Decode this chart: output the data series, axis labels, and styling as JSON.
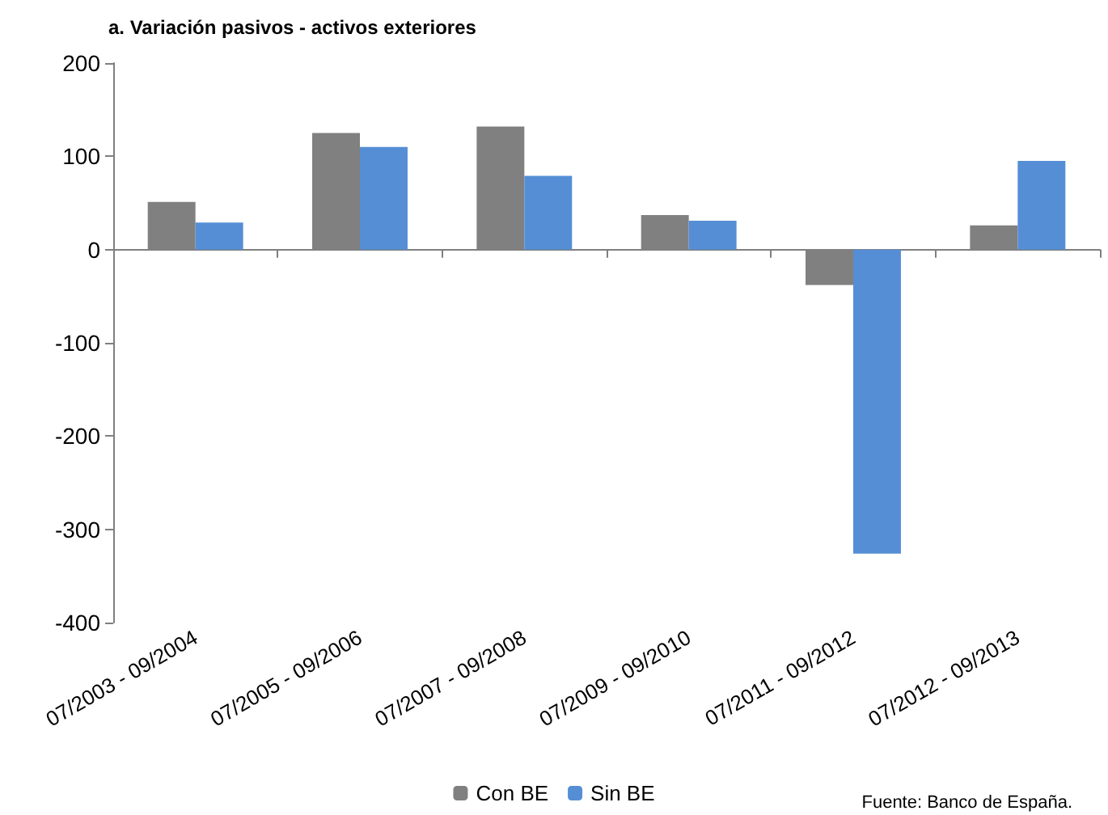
{
  "chart_data": {
    "type": "bar",
    "title": "a. Variación pasivos - activos exteriores",
    "categories": [
      "07/2003 - 09/2004",
      "07/2005 - 09/2006",
      "07/2007 - 09/2008",
      "07/2009 - 09/2010",
      "07/2011 - 09/2012",
      "07/2012 - 09/2013"
    ],
    "series": [
      {
        "name": "Con BE",
        "color": "#808080",
        "values": [
          51,
          125,
          132,
          37,
          -38,
          26
        ]
      },
      {
        "name": "Sin BE",
        "color": "#558ed5",
        "values": [
          29,
          110,
          79,
          31,
          -326,
          95
        ]
      }
    ],
    "ylim": [
      -400,
      200
    ],
    "yticks": [
      -400,
      -300,
      -200,
      -100,
      0,
      100,
      200
    ],
    "legend": "bottom",
    "annotations": [
      "Fuente: Banco de España."
    ]
  }
}
